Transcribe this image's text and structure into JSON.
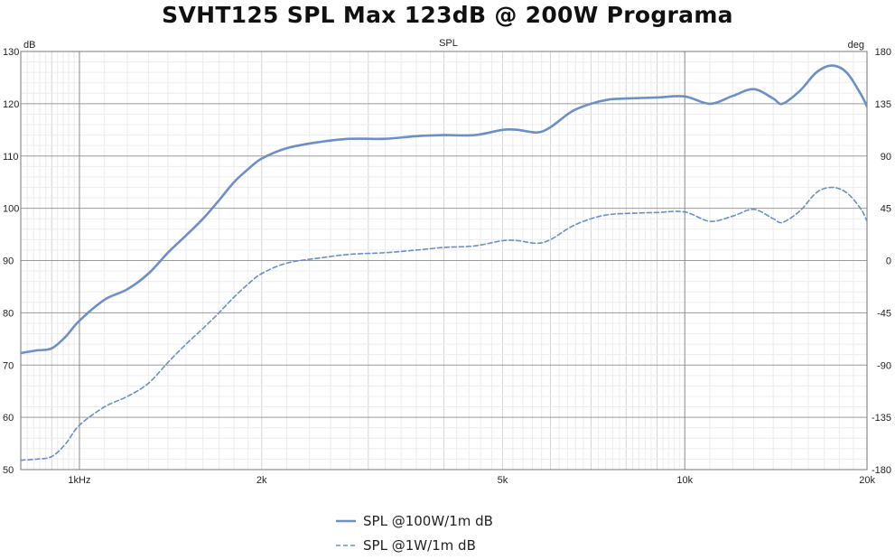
{
  "title": "SVHT125 SPL Max 123dB @ 200W Programa",
  "chart_data": {
    "type": "line",
    "title": "SPL",
    "x_scale": "log",
    "xlim": [
      800,
      20000
    ],
    "ylim": [
      50,
      130
    ],
    "y2lim": [
      -180,
      180
    ],
    "ylabel": "dB",
    "y2label": "deg",
    "x_ticks": [
      {
        "value": 1000,
        "label": "1kHz"
      },
      {
        "value": 2000,
        "label": "2k"
      },
      {
        "value": 5000,
        "label": "5k"
      },
      {
        "value": 10000,
        "label": "10k"
      },
      {
        "value": 20000,
        "label": "20k"
      }
    ],
    "y_ticks": [
      50,
      60,
      70,
      80,
      90,
      100,
      110,
      120,
      130
    ],
    "y2_ticks": [
      -180,
      -135,
      -90,
      -45,
      0,
      45,
      90,
      135,
      180
    ],
    "grid": true,
    "legend_position": "bottom-center",
    "series": [
      {
        "name": "SPL @100W/1m dB",
        "style": "solid",
        "color": "#6b8fc6",
        "points": [
          [
            800,
            72.3
          ],
          [
            850,
            72.8
          ],
          [
            900,
            73.2
          ],
          [
            950,
            75.5
          ],
          [
            1000,
            78.5
          ],
          [
            1100,
            82.5
          ],
          [
            1200,
            84.5
          ],
          [
            1300,
            87.5
          ],
          [
            1400,
            91.5
          ],
          [
            1500,
            94.8
          ],
          [
            1600,
            98.0
          ],
          [
            1700,
            101.5
          ],
          [
            1800,
            105.0
          ],
          [
            1900,
            107.5
          ],
          [
            2000,
            109.5
          ],
          [
            2200,
            111.5
          ],
          [
            2500,
            112.7
          ],
          [
            2800,
            113.3
          ],
          [
            3200,
            113.3
          ],
          [
            3600,
            113.8
          ],
          [
            4000,
            114.0
          ],
          [
            4500,
            114.0
          ],
          [
            5000,
            115.0
          ],
          [
            5300,
            115.0
          ],
          [
            5700,
            114.5
          ],
          [
            6000,
            115.5
          ],
          [
            6500,
            118.5
          ],
          [
            7000,
            120.0
          ],
          [
            7500,
            120.8
          ],
          [
            8000,
            121.0
          ],
          [
            9000,
            121.2
          ],
          [
            10000,
            121.4
          ],
          [
            11000,
            120.0
          ],
          [
            12000,
            121.5
          ],
          [
            13000,
            122.8
          ],
          [
            14000,
            121.0
          ],
          [
            14500,
            120.0
          ],
          [
            15500,
            122.5
          ],
          [
            16500,
            126.0
          ],
          [
            17500,
            127.3
          ],
          [
            18500,
            126.0
          ],
          [
            19500,
            122.0
          ],
          [
            20000,
            119.5
          ],
          [
            21000,
            114.5
          ]
        ]
      },
      {
        "name": "SPL @1W/1m dB",
        "style": "dashed",
        "color": "#6b8fc6",
        "points": [
          [
            800,
            51.8
          ],
          [
            850,
            52.0
          ],
          [
            900,
            52.5
          ],
          [
            950,
            55.0
          ],
          [
            1000,
            58.5
          ],
          [
            1100,
            62.0
          ],
          [
            1200,
            64.0
          ],
          [
            1300,
            66.5
          ],
          [
            1400,
            70.5
          ],
          [
            1500,
            74.0
          ],
          [
            1600,
            77.0
          ],
          [
            1700,
            80.0
          ],
          [
            1800,
            83.0
          ],
          [
            1900,
            85.5
          ],
          [
            2000,
            87.5
          ],
          [
            2200,
            89.5
          ],
          [
            2500,
            90.5
          ],
          [
            2800,
            91.2
          ],
          [
            3200,
            91.5
          ],
          [
            3600,
            92.0
          ],
          [
            4000,
            92.5
          ],
          [
            4500,
            92.8
          ],
          [
            5000,
            93.8
          ],
          [
            5300,
            93.8
          ],
          [
            5700,
            93.3
          ],
          [
            6000,
            94.0
          ],
          [
            6500,
            96.5
          ],
          [
            7000,
            98.0
          ],
          [
            7500,
            98.8
          ],
          [
            8000,
            99.0
          ],
          [
            9000,
            99.2
          ],
          [
            10000,
            99.3
          ],
          [
            11000,
            97.5
          ],
          [
            12000,
            98.5
          ],
          [
            13000,
            99.8
          ],
          [
            14000,
            98.0
          ],
          [
            14500,
            97.3
          ],
          [
            15500,
            99.5
          ],
          [
            16500,
            103.0
          ],
          [
            17500,
            104.0
          ],
          [
            18500,
            103.0
          ],
          [
            19500,
            100.0
          ],
          [
            20000,
            97.5
          ],
          [
            21000,
            91.5
          ]
        ]
      }
    ]
  }
}
